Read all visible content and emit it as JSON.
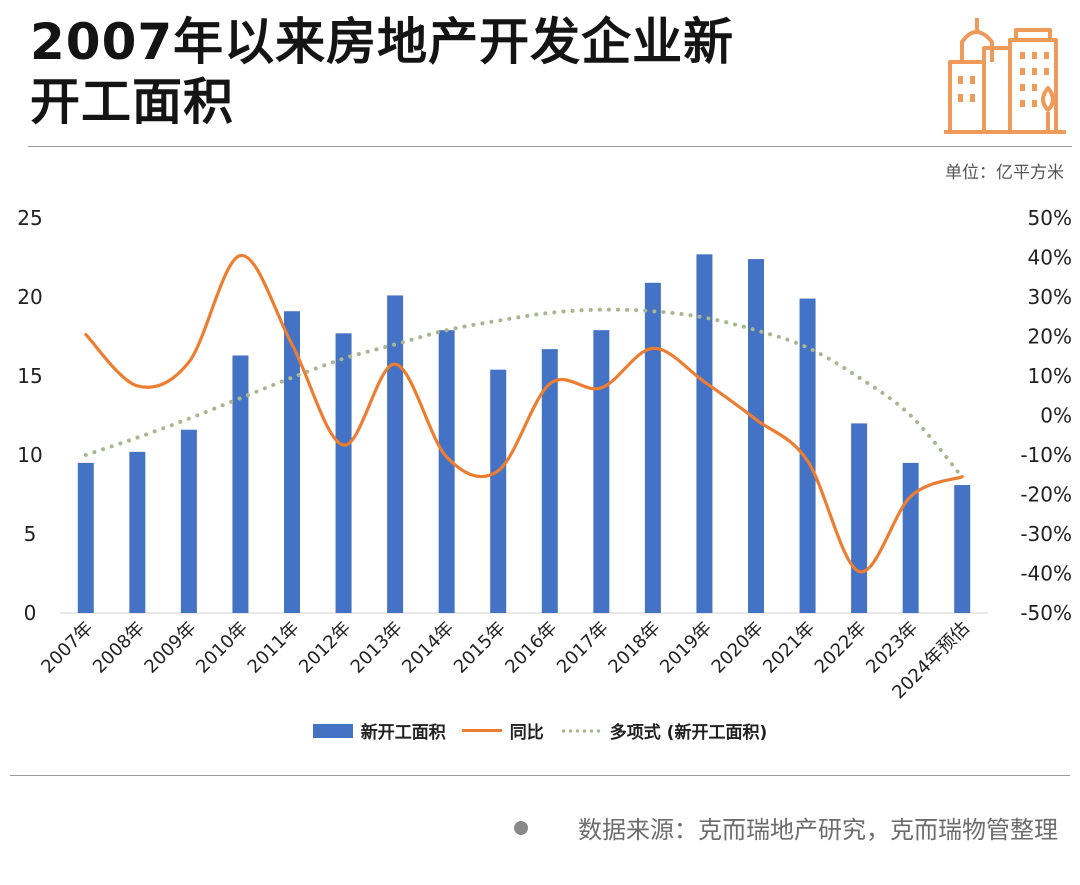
{
  "header": {
    "title_line1": "2007年以来房地产开发企业新",
    "title_line2": "开工面积",
    "logo_icon": "city-buildings-icon",
    "unit_label": "单位：亿平方米"
  },
  "chart_data": {
    "type": "bar",
    "categories": [
      "2007年",
      "2008年",
      "2009年",
      "2010年",
      "2011年",
      "2012年",
      "2013年",
      "2014年",
      "2015年",
      "2016年",
      "2017年",
      "2018年",
      "2019年",
      "2020年",
      "2021年",
      "2022年",
      "2023年",
      "2024年预估"
    ],
    "series": [
      {
        "name": "新开工面积",
        "type": "bar",
        "axis": "left",
        "color": "#4472c4",
        "values": [
          9.5,
          10.2,
          11.6,
          16.3,
          19.1,
          17.7,
          20.1,
          17.9,
          15.4,
          16.7,
          17.9,
          20.9,
          22.7,
          22.4,
          19.9,
          12.0,
          9.5,
          8.1
        ]
      },
      {
        "name": "同比",
        "type": "line",
        "axis": "right",
        "color": "#ed7d31",
        "values": [
          20.5,
          7.5,
          13.5,
          40.5,
          18.0,
          -7.5,
          13.0,
          -10.5,
          -14.0,
          8.0,
          7.0,
          17.0,
          8.5,
          -1.0,
          -11.5,
          -39.5,
          -20.5,
          -15.5
        ]
      },
      {
        "name": "多项式 (新开工面积)",
        "type": "trendline",
        "axis": "left",
        "color": "#a9b68f",
        "values": [
          10.0,
          11.1,
          12.3,
          13.6,
          14.9,
          16.1,
          17.0,
          17.9,
          18.5,
          19.0,
          19.2,
          19.1,
          18.7,
          17.9,
          16.8,
          14.9,
          12.5,
          8.6
        ]
      }
    ],
    "y_left": {
      "ylim": [
        0,
        25
      ],
      "ticks": [
        "0",
        "5",
        "10",
        "15",
        "20",
        "25"
      ]
    },
    "y_right": {
      "ylim": [
        -50,
        50
      ],
      "ticks": [
        "-50%",
        "-40%",
        "-30%",
        "-20%",
        "-10%",
        "0%",
        "10%",
        "20%",
        "30%",
        "40%",
        "50%"
      ]
    },
    "legend": {
      "position": "bottom",
      "items": [
        "新开工面积",
        "同比",
        "多项式 (新开工面积)"
      ]
    },
    "grid": false
  },
  "footer": {
    "source": "数据来源：克而瑞地产研究，克而瑞物管整理"
  }
}
